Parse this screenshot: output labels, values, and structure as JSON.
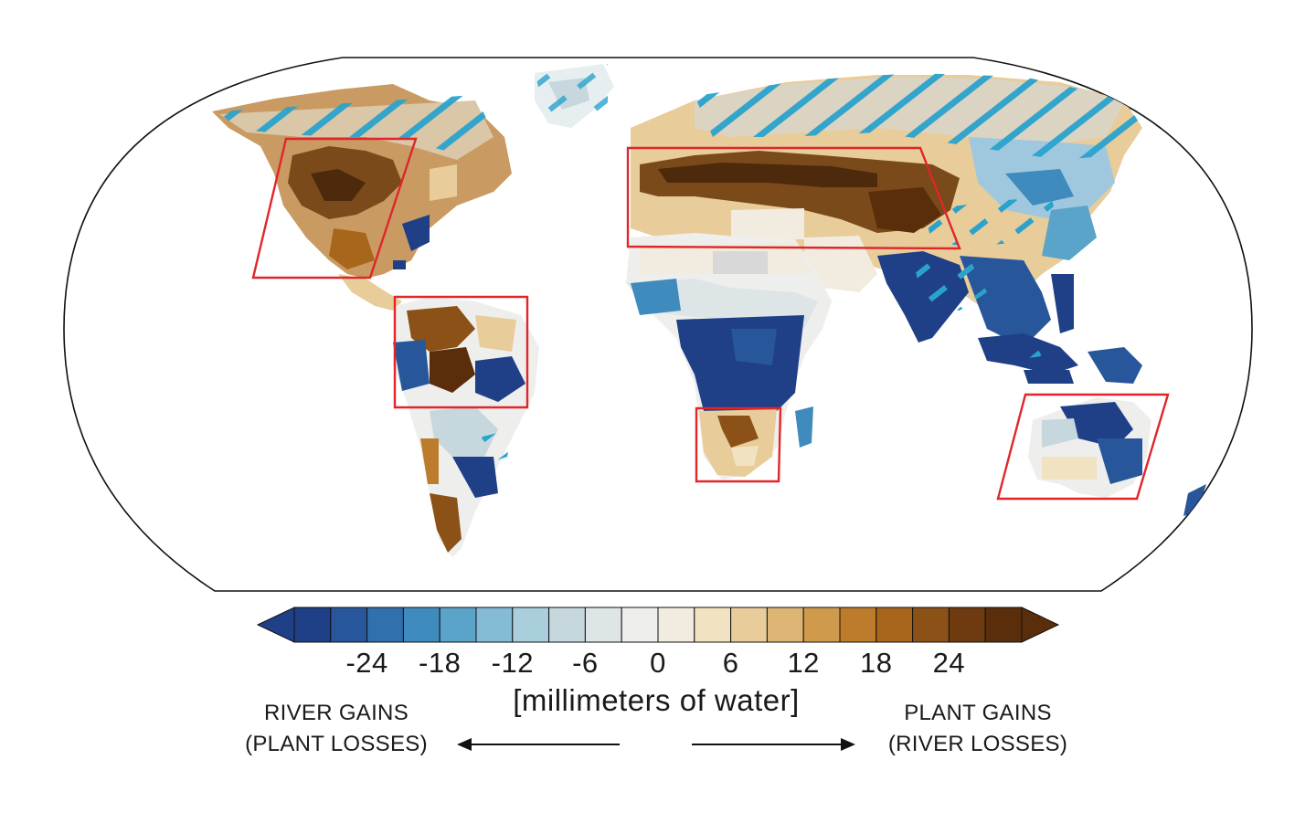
{
  "colorbar": {
    "ticks": [
      "-24",
      "-18",
      "-12",
      "-6",
      "0",
      "6",
      "12",
      "18",
      "24"
    ],
    "tick_values": [
      -24,
      -18,
      -12,
      -6,
      0,
      6,
      12,
      18,
      24
    ],
    "range": [
      -30,
      30
    ],
    "step": 3,
    "units": "[millimeters of water]",
    "colors": [
      "#1f3f87",
      "#28569a",
      "#2f70ad",
      "#3f8bbd",
      "#5aa3c9",
      "#84bcd6",
      "#a9cfdc",
      "#c6d8de",
      "#dde5e7",
      "#eeeeec",
      "#f1ecdf",
      "#f1e2c2",
      "#e8cc9a",
      "#ddb474",
      "#cf9a4c",
      "#bd7c2c",
      "#a8661c",
      "#8c5117",
      "#6e3b10",
      "#5a2e0b"
    ]
  },
  "left_label": {
    "line1": "RIVER GAINS",
    "line2": "(PLANT LOSSES)"
  },
  "right_label": {
    "line1": "PLANT GAINS",
    "line2": "(RIVER LOSSES)"
  },
  "highlight_color": "#e0262a",
  "hatch_color": "#2aa3cc"
}
